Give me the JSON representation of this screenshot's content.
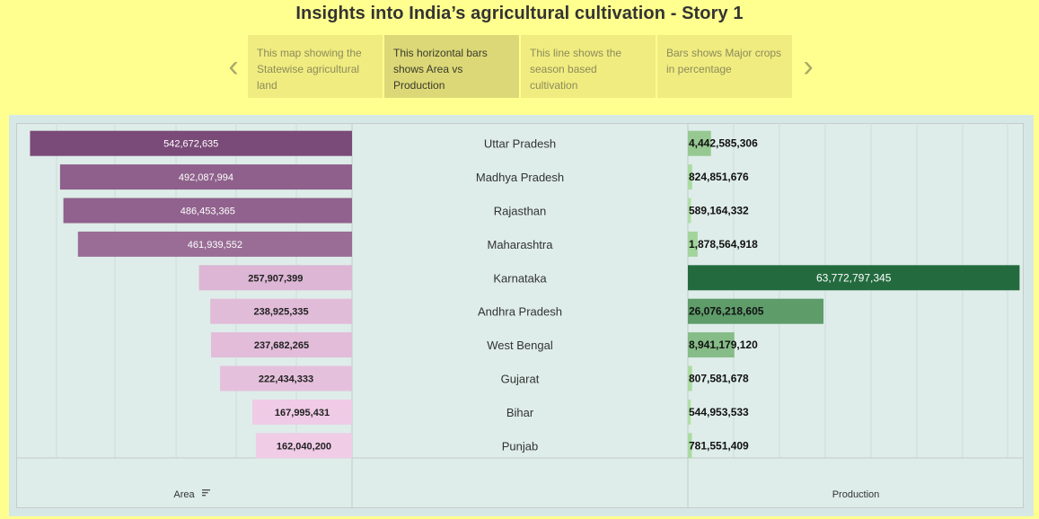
{
  "story": {
    "title": "Insights into India’s agricultural cultivation - Story 1",
    "points": [
      "This map showing the Statewise agricultural land",
      "This horizontal bars shows Area vs Production",
      "This line shows the season based cultivation",
      "Bars shows Major crops in percentage"
    ],
    "active_index": 1,
    "prev_label": "‹",
    "next_label": "›"
  },
  "colors": {
    "page_bg": "#ffff8f",
    "area_dark": "#7a4a78",
    "area_light": "#f0cce6",
    "production_dark": "#236b3e",
    "production_light": "#b0dfa6"
  },
  "chart_data": {
    "type": "bar",
    "categories": [
      "Uttar Pradesh",
      "Madhya Pradesh",
      "Rajasthan",
      "Maharashtra",
      "Karnataka",
      "Andhra Pradesh",
      "West Bengal",
      "Gujarat",
      "Bihar",
      "Punjab"
    ],
    "series": [
      {
        "name": "Area",
        "values": [
          542672635,
          492087994,
          486453365,
          461939552,
          257907399,
          238925335,
          237682265,
          222434333,
          167995431,
          162040200
        ],
        "labels": [
          "542,672,635",
          "492,087,994",
          "486,453,365",
          "461,939,552",
          "257,907,399",
          "238,925,335",
          "237,682,265",
          "222,434,333",
          "167,995,431",
          "162,040,200"
        ]
      },
      {
        "name": "Production",
        "values": [
          4442585306,
          824851676,
          589164332,
          1878564918,
          63772797345,
          26076218605,
          8941179120,
          807581678,
          544953533,
          781551409
        ],
        "labels": [
          "4,442,585,306",
          "824,851,676",
          "589,164,332",
          "1,878,564,918",
          "63,772,797,345",
          "26,076,218,605",
          "8,941,179,120",
          "807,581,678",
          "544,953,533",
          "781,551,409"
        ]
      }
    ],
    "xlabel_area": "Area",
    "xlabel_production": "Production",
    "area_sorted": true,
    "grid": true
  }
}
